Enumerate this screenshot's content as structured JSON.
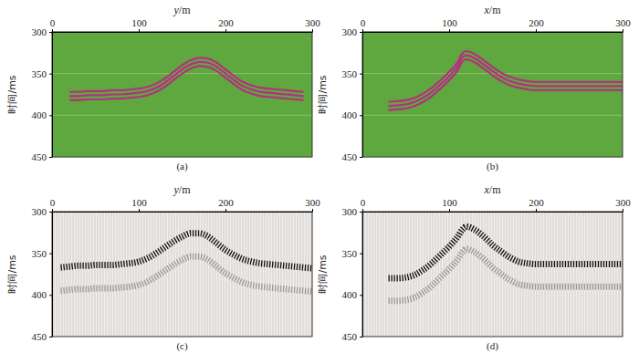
{
  "chart_data": [
    {
      "type": "line",
      "title": "(a)",
      "xlabel": "y/m",
      "ylabel": "时间/ms",
      "xlim": [
        0,
        300
      ],
      "ylim": [
        450,
        300
      ],
      "xticks": [
        0,
        100,
        200,
        300
      ],
      "yticks": [
        300,
        350,
        400,
        450
      ],
      "grid": true,
      "color": "#5ea83f",
      "x": [
        20,
        30,
        40,
        50,
        60,
        70,
        80,
        90,
        100,
        110,
        120,
        130,
        140,
        150,
        160,
        170,
        180,
        190,
        200,
        210,
        220,
        230,
        240,
        250,
        260,
        270,
        280,
        290
      ],
      "series": [
        {
          "color": "#b5307f",
          "line_style": "solid",
          "values": [
            372,
            372,
            371,
            371,
            371,
            370,
            370,
            369,
            368,
            366,
            362,
            356,
            348,
            340,
            334,
            331,
            332,
            337,
            345,
            353,
            360,
            364,
            367,
            368,
            369,
            370,
            371,
            372
          ]
        },
        {
          "color": "#b5307f",
          "line_style": "solid",
          "values": [
            377,
            377,
            376,
            376,
            376,
            375,
            375,
            374,
            373,
            371,
            367,
            361,
            353,
            345,
            339,
            336,
            337,
            342,
            350,
            358,
            365,
            369,
            372,
            373,
            374,
            375,
            376,
            377
          ]
        },
        {
          "color": "#b5307f",
          "line_style": "solid",
          "values": [
            382,
            382,
            381,
            381,
            381,
            380,
            380,
            379,
            378,
            376,
            372,
            366,
            358,
            350,
            344,
            341,
            342,
            347,
            355,
            363,
            370,
            374,
            377,
            378,
            379,
            380,
            381,
            382
          ]
        }
      ]
    },
    {
      "type": "line",
      "title": "(b)",
      "xlabel": "x/m",
      "ylabel": "时间/ms",
      "xlim": [
        0,
        300
      ],
      "ylim": [
        450,
        300
      ],
      "xticks": [
        0,
        100,
        200,
        300
      ],
      "yticks": [
        300,
        350,
        400,
        450
      ],
      "grid": true,
      "color": "#5ea83f",
      "x": [
        30,
        40,
        50,
        60,
        70,
        80,
        90,
        100,
        110,
        115,
        120,
        130,
        140,
        150,
        160,
        170,
        180,
        190,
        200,
        220,
        240,
        260,
        280,
        300
      ],
      "series": [
        {
          "color": "#b5307f",
          "line_style": "solid",
          "values": [
            384,
            383,
            382,
            379,
            374,
            367,
            358,
            348,
            336,
            326,
            323,
            327,
            334,
            342,
            349,
            354,
            357,
            359,
            360,
            360,
            360,
            360,
            360,
            360
          ]
        },
        {
          "color": "#b5307f",
          "line_style": "solid",
          "values": [
            389,
            388,
            387,
            384,
            379,
            372,
            363,
            353,
            341,
            331,
            328,
            332,
            339,
            347,
            354,
            359,
            362,
            364,
            365,
            365,
            365,
            365,
            365,
            365
          ]
        },
        {
          "color": "#b5307f",
          "line_style": "solid",
          "values": [
            394,
            393,
            392,
            389,
            384,
            377,
            368,
            358,
            346,
            336,
            333,
            337,
            344,
            352,
            359,
            364,
            367,
            369,
            370,
            370,
            370,
            370,
            370,
            370
          ]
        }
      ]
    },
    {
      "type": "line",
      "title": "(c)",
      "xlabel": "y/m",
      "ylabel": "时间/ms",
      "xlim": [
        0,
        300
      ],
      "ylim": [
        450,
        300
      ],
      "xticks": [
        0,
        100,
        200,
        300
      ],
      "yticks": [
        300,
        350,
        400,
        450
      ],
      "grid": false,
      "color": "#f2eeec",
      "x": [
        10,
        20,
        30,
        40,
        50,
        60,
        70,
        80,
        90,
        100,
        110,
        120,
        130,
        140,
        150,
        160,
        170,
        180,
        190,
        200,
        210,
        220,
        230,
        240,
        250,
        260,
        270,
        280,
        290,
        300
      ],
      "series": [
        {
          "color": "#111111",
          "line_style": "wiggle",
          "values": [
            367,
            366,
            365,
            365,
            364,
            364,
            364,
            363,
            362,
            360,
            356,
            350,
            343,
            336,
            330,
            326,
            326,
            330,
            338,
            346,
            352,
            357,
            360,
            362,
            363,
            364,
            365,
            366,
            367,
            368
          ]
        },
        {
          "color": "#9a9a9a",
          "line_style": "wiggle",
          "values": [
            395,
            394,
            393,
            393,
            392,
            392,
            392,
            391,
            390,
            388,
            384,
            378,
            371,
            364,
            358,
            354,
            354,
            358,
            366,
            374,
            380,
            385,
            388,
            390,
            391,
            392,
            393,
            394,
            395,
            396
          ]
        }
      ]
    },
    {
      "type": "line",
      "title": "(d)",
      "xlabel": "x/m",
      "ylabel": "时间/ms",
      "xlim": [
        0,
        300
      ],
      "ylim": [
        450,
        300
      ],
      "xticks": [
        0,
        100,
        200,
        300
      ],
      "yticks": [
        300,
        350,
        400,
        450
      ],
      "grid": false,
      "color": "#f2eeec",
      "x": [
        30,
        40,
        50,
        60,
        70,
        80,
        90,
        100,
        110,
        115,
        120,
        130,
        140,
        150,
        160,
        170,
        180,
        190,
        200,
        220,
        240,
        260,
        280,
        300
      ],
      "series": [
        {
          "color": "#111111",
          "line_style": "wiggle",
          "values": [
            380,
            380,
            379,
            376,
            370,
            362,
            352,
            342,
            330,
            322,
            318,
            322,
            330,
            340,
            348,
            355,
            360,
            362,
            363,
            363,
            363,
            363,
            363,
            363
          ]
        },
        {
          "color": "#9a9a9a",
          "line_style": "wiggle",
          "values": [
            407,
            407,
            406,
            403,
            397,
            389,
            379,
            369,
            357,
            349,
            345,
            349,
            357,
            367,
            375,
            382,
            387,
            389,
            390,
            390,
            390,
            390,
            390,
            390
          ]
        }
      ]
    }
  ]
}
